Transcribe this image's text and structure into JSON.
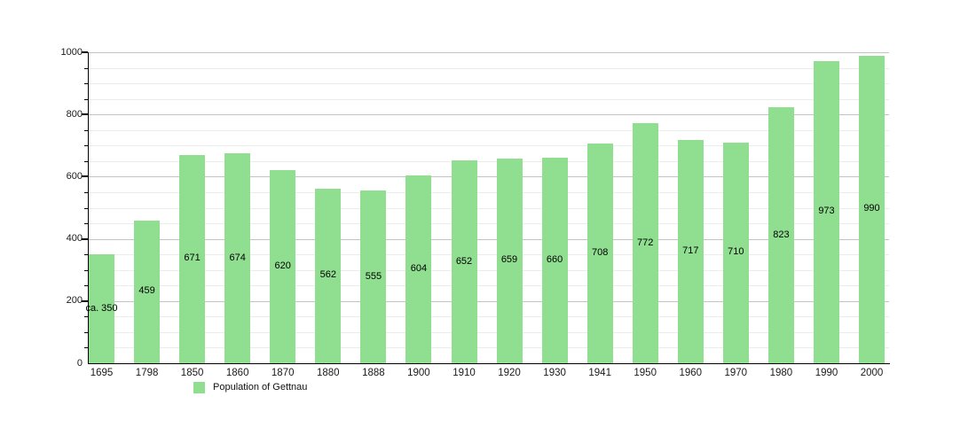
{
  "chart_data": {
    "type": "bar",
    "title": "",
    "legend": "Population of Gettnau",
    "categories": [
      "1695",
      "1798",
      "1850",
      "1860",
      "1870",
      "1880",
      "1888",
      "1900",
      "1910",
      "1920",
      "1930",
      "1941",
      "1950",
      "1960",
      "1970",
      "1980",
      "1990",
      "2000"
    ],
    "values": [
      350,
      459,
      671,
      674,
      620,
      562,
      555,
      604,
      652,
      659,
      660,
      708,
      772,
      717,
      710,
      823,
      973,
      990
    ],
    "value_labels": [
      "ca. 350",
      "459",
      "671",
      "674",
      "620",
      "562",
      "555",
      "604",
      "652",
      "659",
      "660",
      "708",
      "772",
      "717",
      "710",
      "823",
      "973",
      "990"
    ],
    "xlabel": "",
    "ylabel": "",
    "ylim": [
      0,
      1000
    ],
    "y_ticks": [
      0,
      200,
      400,
      600,
      800,
      1000
    ],
    "minor_gridline_step": 50,
    "grid": true,
    "legend_position": "bottom-left",
    "bar_color": "#90de90",
    "axis_color": "#000000",
    "major_grid_color": "#c4c4c4",
    "minor_grid_color": "#ececec"
  }
}
